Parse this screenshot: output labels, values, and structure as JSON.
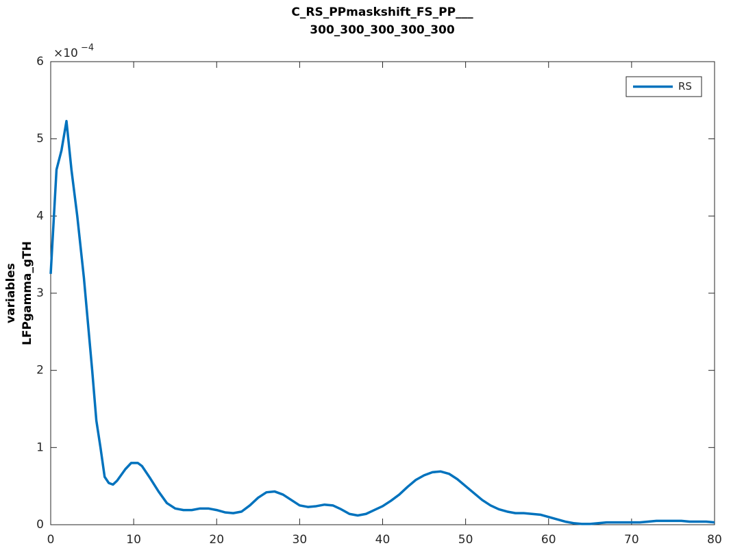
{
  "chart_data": {
    "type": "line",
    "title": [
      "C_RS_PPmaskshift_FS_PP___",
      "300_300_300_300_300"
    ],
    "ylabel": [
      "variables",
      "LFPgamma_gTH"
    ],
    "y_multiplier": {
      "base": "×10",
      "exponent": "−4"
    },
    "xlim": [
      0,
      80
    ],
    "xticks": [
      0,
      10,
      20,
      30,
      40,
      50,
      60,
      70,
      80
    ],
    "ylim": [
      0,
      6
    ],
    "yticks": [
      0,
      1,
      2,
      3,
      4,
      5,
      6
    ],
    "grid": false,
    "legend": "upper right",
    "x": [
      0,
      0.7,
      1.3,
      1.9,
      2.5,
      3.2,
      4,
      4.5,
      5,
      5.5,
      6,
      6.5,
      7,
      7.5,
      8,
      9,
      9.7,
      10.5,
      11,
      12,
      13,
      14,
      15,
      16,
      17,
      18,
      19,
      20,
      21,
      22,
      23,
      24,
      25,
      26,
      27,
      28,
      29,
      30,
      31,
      32,
      33,
      34,
      35,
      36,
      37,
      38,
      39,
      40,
      41,
      42,
      43,
      44,
      45,
      46,
      47,
      48,
      49,
      50,
      51,
      52,
      53,
      54,
      55,
      56,
      57,
      58,
      59,
      60,
      61,
      62,
      63,
      64,
      65,
      66,
      67,
      68,
      69,
      70,
      71,
      72,
      73,
      74,
      75,
      76,
      77,
      78,
      79,
      80
    ],
    "series": [
      {
        "name": "RS",
        "color": "#0072bd",
        "values": [
          3.25,
          4.6,
          4.85,
          5.23,
          4.6,
          4.0,
          3.2,
          2.6,
          2.0,
          1.35,
          1.0,
          0.62,
          0.54,
          0.52,
          0.57,
          0.72,
          0.8,
          0.8,
          0.76,
          0.6,
          0.43,
          0.28,
          0.21,
          0.19,
          0.19,
          0.21,
          0.21,
          0.19,
          0.16,
          0.15,
          0.17,
          0.25,
          0.35,
          0.42,
          0.43,
          0.39,
          0.32,
          0.25,
          0.23,
          0.24,
          0.26,
          0.25,
          0.2,
          0.14,
          0.12,
          0.14,
          0.19,
          0.24,
          0.31,
          0.39,
          0.49,
          0.58,
          0.64,
          0.68,
          0.69,
          0.66,
          0.59,
          0.5,
          0.41,
          0.32,
          0.25,
          0.2,
          0.17,
          0.15,
          0.15,
          0.14,
          0.13,
          0.1,
          0.07,
          0.04,
          0.02,
          0.01,
          0.01,
          0.02,
          0.03,
          0.03,
          0.03,
          0.03,
          0.03,
          0.04,
          0.05,
          0.05,
          0.05,
          0.05,
          0.04,
          0.04,
          0.04,
          0.03
        ]
      }
    ]
  }
}
